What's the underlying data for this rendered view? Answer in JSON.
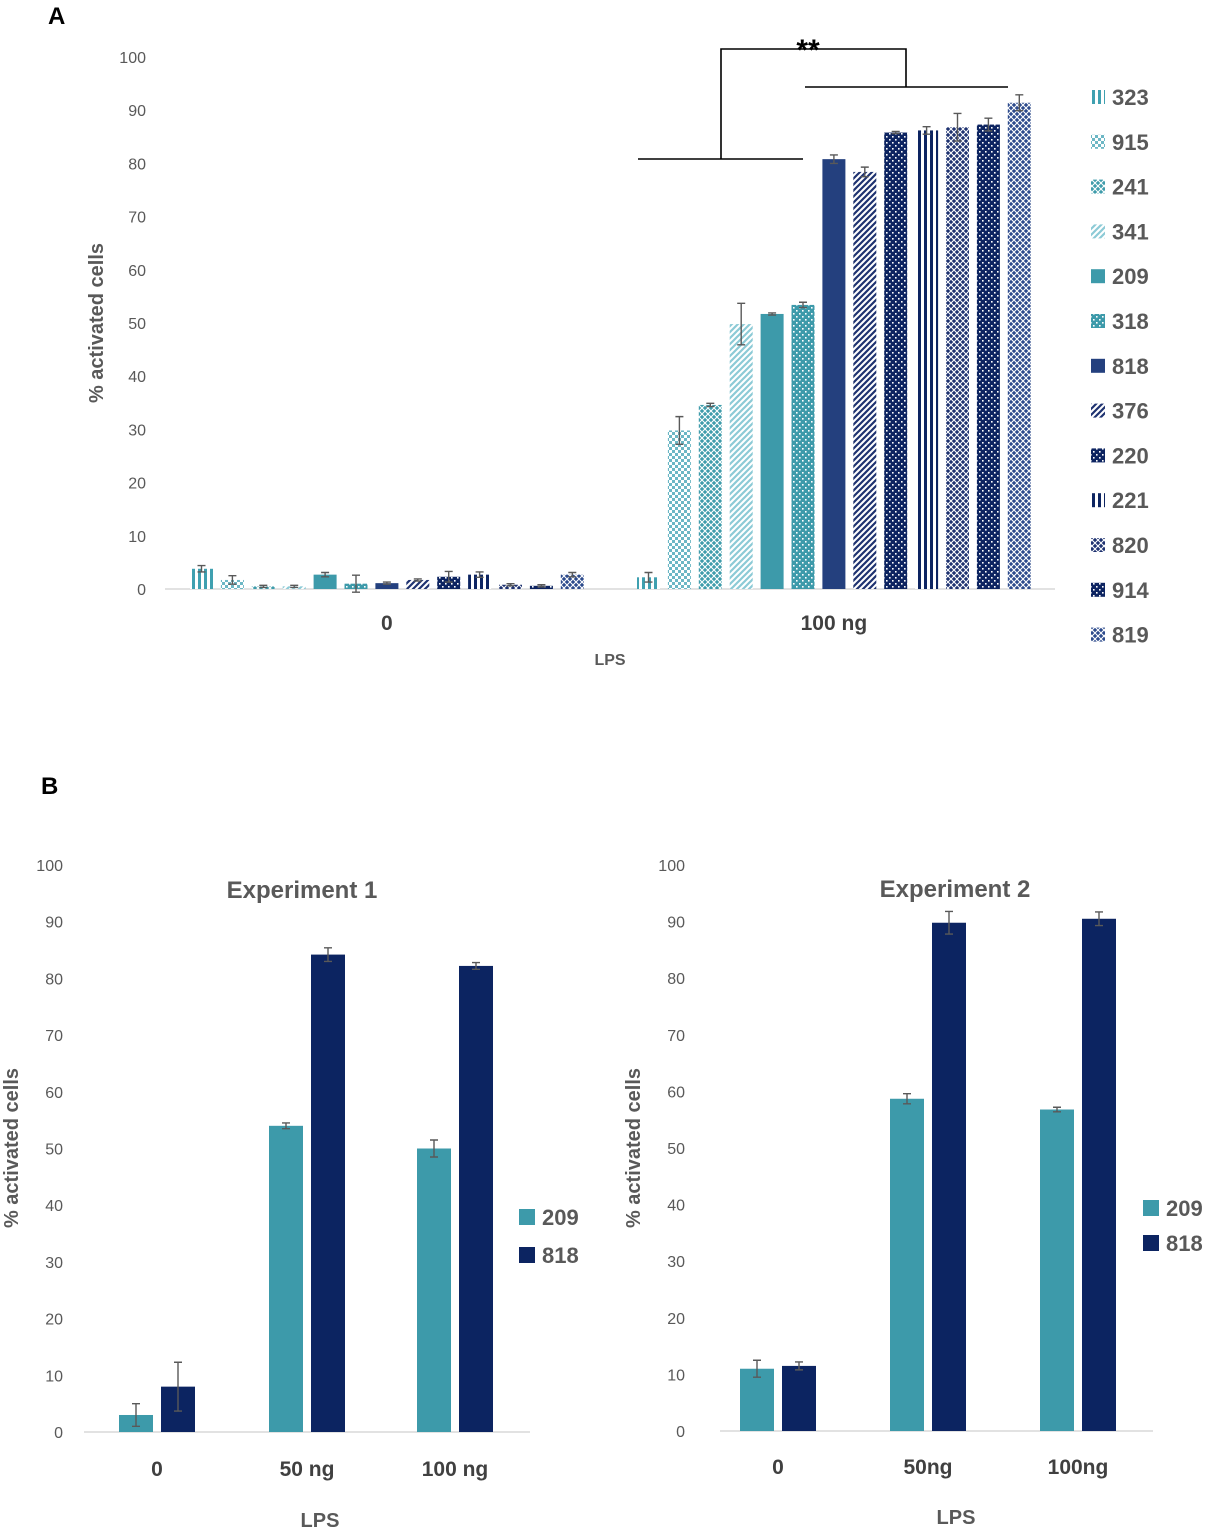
{
  "chart_data": [
    {
      "panel": "A",
      "type": "bar",
      "title": "",
      "xlabel": "LPS",
      "ylabel": "% activated cells",
      "ylim": [
        0,
        100
      ],
      "yticks": [
        0,
        10,
        20,
        30,
        40,
        50,
        60,
        70,
        80,
        90,
        100
      ],
      "categories": [
        "0",
        "100 ng"
      ],
      "legend_position": "right",
      "series": [
        {
          "name": "323",
          "pattern": "vlines",
          "color": "#3fa0b0",
          "values": [
            3.8,
            2.2
          ],
          "errors": [
            0.6,
            0.9
          ]
        },
        {
          "name": "915",
          "pattern": "dots",
          "color": "#6cb7c5",
          "values": [
            1.7,
            29.8
          ],
          "errors": [
            0.8,
            2.6
          ]
        },
        {
          "name": "241",
          "pattern": "cross",
          "color": "#3f9cab",
          "values": [
            0.5,
            34.6
          ],
          "errors": [
            0.2,
            0.3
          ]
        },
        {
          "name": "341",
          "pattern": "diag",
          "color": "#8ccad6",
          "values": [
            0.5,
            49.8
          ],
          "errors": [
            0.2,
            3.9
          ]
        },
        {
          "name": "209",
          "pattern": "solid",
          "color": "#3d9aaa",
          "values": [
            2.7,
            51.7
          ],
          "errors": [
            0.4,
            0.2
          ]
        },
        {
          "name": "318",
          "pattern": "wdots",
          "color": "#3d9aaa",
          "values": [
            1.0,
            53.4
          ],
          "errors": [
            1.6,
            0.5
          ]
        },
        {
          "name": "818",
          "pattern": "solid",
          "color": "#24407e",
          "values": [
            1.1,
            80.8
          ],
          "errors": [
            0.2,
            0.8
          ]
        },
        {
          "name": "376",
          "pattern": "diag",
          "color": "#1e3270",
          "values": [
            1.7,
            78.4
          ],
          "errors": [
            0.2,
            0.9
          ]
        },
        {
          "name": "220",
          "pattern": "wdots",
          "color": "#0d2461",
          "values": [
            2.3,
            85.8
          ],
          "errors": [
            1.0,
            0.2
          ]
        },
        {
          "name": "221",
          "pattern": "vlines",
          "color": "#0d2461",
          "values": [
            2.7,
            86.2
          ],
          "errors": [
            0.5,
            0.7
          ]
        },
        {
          "name": "820",
          "pattern": "cross",
          "color": "#1e3270",
          "values": [
            0.8,
            86.8
          ],
          "errors": [
            0.2,
            2.6
          ]
        },
        {
          "name": "914",
          "pattern": "wdots",
          "color": "#0d2461",
          "values": [
            0.6,
            87.3
          ],
          "errors": [
            0.2,
            1.2
          ]
        },
        {
          "name": "819",
          "pattern": "cross",
          "color": "#2c4a8c",
          "values": [
            2.7,
            91.4
          ],
          "errors": [
            0.4,
            1.5
          ]
        }
      ],
      "annotation": "**"
    },
    {
      "panel": "B",
      "type": "bar",
      "title": "Experiment 1",
      "xlabel": "LPS",
      "ylabel": "% activated cells",
      "ylim": [
        0,
        100
      ],
      "yticks": [
        0,
        10,
        20,
        30,
        40,
        50,
        60,
        70,
        80,
        90,
        100
      ],
      "categories": [
        "0",
        "50 ng",
        "100 ng"
      ],
      "legend_position": "right",
      "series": [
        {
          "name": "209",
          "color": "#3d9aaa",
          "values": [
            3.0,
            54.0,
            50.0
          ],
          "errors": [
            2.0,
            0.5,
            1.5
          ]
        },
        {
          "name": "818",
          "color": "#0c2461",
          "values": [
            8.0,
            84.2,
            82.2
          ],
          "errors": [
            4.3,
            1.2,
            0.6
          ]
        }
      ]
    },
    {
      "panel": "B",
      "type": "bar",
      "title": "Experiment 2",
      "xlabel": "LPS",
      "ylabel": "% activated cells",
      "ylim": [
        0,
        100
      ],
      "yticks": [
        0,
        10,
        20,
        30,
        40,
        50,
        60,
        70,
        80,
        90,
        100
      ],
      "categories": [
        "0",
        "50ng",
        "100ng"
      ],
      "legend_position": "right",
      "series": [
        {
          "name": "209",
          "color": "#3d9aaa",
          "values": [
            11.0,
            58.7,
            56.8
          ],
          "errors": [
            1.5,
            0.9,
            0.4
          ]
        },
        {
          "name": "818",
          "color": "#0c2461",
          "values": [
            11.5,
            89.8,
            90.5
          ],
          "errors": [
            0.7,
            2.0,
            1.2
          ]
        }
      ]
    }
  ],
  "labels": {
    "panel_a": "A",
    "panel_b": "B"
  }
}
